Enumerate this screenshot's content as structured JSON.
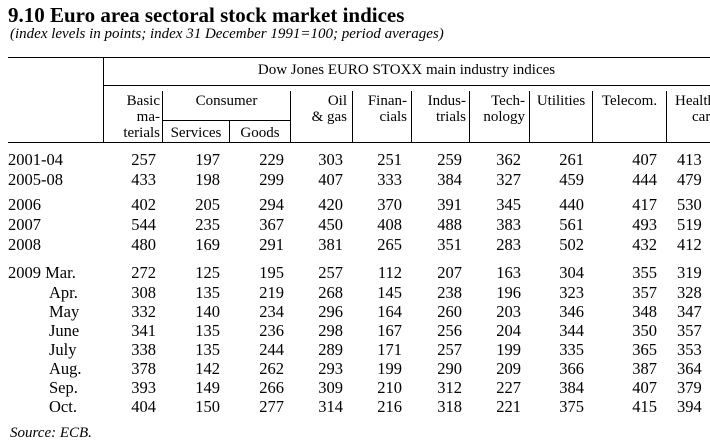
{
  "title": "9.10 Euro area sectoral stock market indices",
  "subtitle": "(index levels in points; index 31 December 1991=100; period averages)",
  "group_header": "Dow Jones EURO STOXX main industry indices",
  "columns": {
    "basic": [
      "Basic",
      "ma-",
      "terials"
    ],
    "consumer": "Consumer",
    "services": "Services",
    "goods": "Goods",
    "oil": [
      "Oil",
      "& gas"
    ],
    "financials": [
      "Finan-",
      "cials"
    ],
    "industrials": [
      "Indus-",
      "trials"
    ],
    "technology": [
      "Tech-",
      "nology"
    ],
    "utilities": "Utilities",
    "telecom": "Telecom.",
    "health": [
      "Health",
      "care"
    ]
  },
  "rows": [
    {
      "label": "2001-04",
      "values": [
        "257",
        "197",
        "229",
        "303",
        "251",
        "259",
        "362",
        "261",
        "407",
        "413"
      ]
    },
    {
      "label": "2005-08",
      "values": [
        "433",
        "198",
        "299",
        "407",
        "333",
        "384",
        "327",
        "459",
        "444",
        "479"
      ]
    },
    {
      "label": "2006",
      "values": [
        "402",
        "205",
        "294",
        "420",
        "370",
        "391",
        "345",
        "440",
        "417",
        "530"
      ]
    },
    {
      "label": "2007",
      "values": [
        "544",
        "235",
        "367",
        "450",
        "408",
        "488",
        "383",
        "561",
        "493",
        "519"
      ]
    },
    {
      "label": "2008",
      "values": [
        "480",
        "169",
        "291",
        "381",
        "265",
        "351",
        "283",
        "502",
        "432",
        "412"
      ]
    },
    {
      "label": "2009 Mar.",
      "values": [
        "272",
        "125",
        "195",
        "257",
        "112",
        "207",
        "163",
        "304",
        "355",
        "319"
      ]
    },
    {
      "label": "Apr.",
      "values": [
        "308",
        "135",
        "219",
        "268",
        "145",
        "238",
        "196",
        "323",
        "357",
        "328"
      ]
    },
    {
      "label": "May",
      "values": [
        "332",
        "140",
        "234",
        "296",
        "164",
        "260",
        "203",
        "346",
        "348",
        "347"
      ]
    },
    {
      "label": "June",
      "values": [
        "341",
        "135",
        "236",
        "298",
        "167",
        "256",
        "204",
        "344",
        "350",
        "357"
      ]
    },
    {
      "label": "July",
      "values": [
        "338",
        "135",
        "244",
        "289",
        "171",
        "257",
        "199",
        "335",
        "365",
        "353"
      ]
    },
    {
      "label": "Aug.",
      "values": [
        "378",
        "142",
        "262",
        "293",
        "199",
        "290",
        "209",
        "366",
        "387",
        "364"
      ]
    },
    {
      "label": "Sep.",
      "values": [
        "393",
        "149",
        "266",
        "309",
        "210",
        "312",
        "227",
        "384",
        "407",
        "379"
      ]
    },
    {
      "label": "Oct.",
      "values": [
        "404",
        "150",
        "277",
        "314",
        "216",
        "318",
        "221",
        "375",
        "415",
        "394"
      ]
    }
  ],
  "source": "Source: ECB."
}
